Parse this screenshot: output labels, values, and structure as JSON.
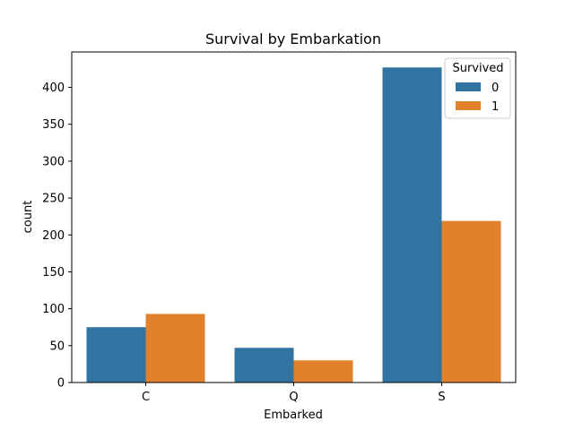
{
  "chart_data": {
    "type": "bar",
    "title": "Survival by Embarkation",
    "xlabel": "Embarked",
    "ylabel": "count",
    "categories": [
      "C",
      "Q",
      "S"
    ],
    "series": [
      {
        "name": "0",
        "values": [
          75,
          47,
          427
        ],
        "color": "#3274a1"
      },
      {
        "name": "1",
        "values": [
          93,
          30,
          219
        ],
        "color": "#e1812c"
      }
    ],
    "ylim": [
      0,
      448
    ],
    "yticks": [
      0,
      50,
      100,
      150,
      200,
      250,
      300,
      350,
      400
    ],
    "legend": {
      "title": "Survived",
      "placement": "top-right"
    },
    "grid": false
  }
}
